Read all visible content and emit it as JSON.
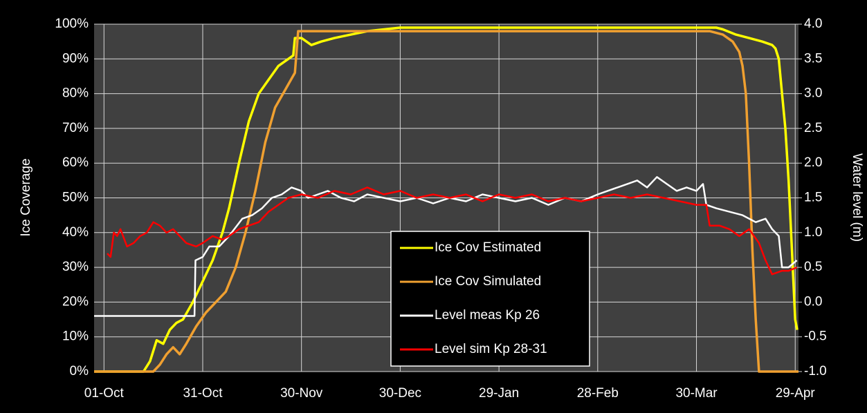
{
  "chart_data": {
    "type": "line",
    "xlim": [
      -3,
      211
    ],
    "xticks": [
      {
        "value": 0,
        "label": "01-Oct"
      },
      {
        "value": 30,
        "label": "31-Oct"
      },
      {
        "value": 60,
        "label": "30-Nov"
      },
      {
        "value": 90,
        "label": "30-Dec"
      },
      {
        "value": 120,
        "label": "29-Jan"
      },
      {
        "value": 150,
        "label": "28-Feb"
      },
      {
        "value": 180,
        "label": "30-Mar"
      },
      {
        "value": 210,
        "label": "29-Apr"
      }
    ],
    "ylabel": "Ice Coverage",
    "ylim": [
      0,
      100
    ],
    "yticks": [
      {
        "value": 0,
        "label": "0%"
      },
      {
        "value": 10,
        "label": "10%"
      },
      {
        "value": 20,
        "label": "20%"
      },
      {
        "value": 30,
        "label": "30%"
      },
      {
        "value": 40,
        "label": "40%"
      },
      {
        "value": 50,
        "label": "50%"
      },
      {
        "value": 60,
        "label": "60%"
      },
      {
        "value": 70,
        "label": "70%"
      },
      {
        "value": 80,
        "label": "80%"
      },
      {
        "value": 90,
        "label": "90%"
      },
      {
        "value": 100,
        "label": "100%"
      }
    ],
    "y2label": "Water level (m)",
    "y2lim": [
      -1,
      4
    ],
    "y2ticks": [
      {
        "value": -1,
        "label": "-1.0"
      },
      -0.5,
      {
        "value": 0,
        "label": "0.0"
      },
      0.5,
      {
        "value": 1,
        "label": "1.0"
      },
      1.5,
      {
        "value": 2,
        "label": "2.0"
      },
      2.5,
      {
        "value": 3,
        "label": "3.0"
      },
      3.5,
      {
        "value": 4,
        "label": "4.0"
      }
    ],
    "grid": true,
    "series": [
      {
        "name": "Ice Cov Estimated",
        "color": "#ffff00",
        "x": [
          -3,
          12,
          14,
          16,
          18,
          20,
          22,
          24,
          27,
          30,
          33,
          36,
          38,
          41,
          44,
          47,
          50,
          53,
          56,
          57.5,
          58,
          60,
          63,
          66,
          70,
          75,
          80,
          90,
          120,
          150,
          180,
          186,
          188,
          192,
          196,
          200,
          203,
          204,
          205,
          206,
          207,
          208,
          209,
          210,
          210.6
        ],
        "values": [
          0,
          0,
          3,
          9,
          8,
          12,
          14,
          15,
          20,
          26,
          32,
          40,
          47,
          60,
          72,
          80,
          84,
          88,
          90,
          91,
          96,
          96,
          94,
          95,
          96,
          97,
          98,
          99,
          99,
          99,
          99,
          99,
          98.5,
          97,
          96,
          95,
          94,
          93,
          90,
          80,
          70,
          55,
          35,
          15,
          12
        ]
      },
      {
        "name": "Ice Cov Simulated",
        "color": "#f0a030",
        "x": [
          -3,
          15,
          17,
          19,
          21,
          23,
          25,
          28,
          31,
          34,
          37,
          40,
          43,
          46,
          49,
          52,
          55,
          58,
          59,
          60,
          90,
          120,
          150,
          180,
          184,
          188,
          191,
          193,
          194,
          195,
          196,
          197,
          198,
          199,
          211
        ],
        "values": [
          0,
          0,
          2,
          5,
          7,
          5,
          8,
          13,
          17,
          20,
          23,
          30,
          40,
          52,
          66,
          76,
          81,
          86,
          98,
          98,
          98,
          98,
          98,
          98,
          98,
          97,
          95,
          92,
          88,
          80,
          60,
          35,
          15,
          0,
          0
        ]
      },
      {
        "name": "Level meas Kp 26",
        "color": "#ffffff",
        "axis": "y2",
        "x": [
          -3,
          27.5,
          27.8,
          30,
          32,
          35,
          38,
          42,
          45,
          48,
          51,
          54,
          57,
          60,
          62,
          65,
          68,
          72,
          76,
          80,
          85,
          90,
          95,
          100,
          105,
          110,
          115,
          120,
          125,
          130,
          135,
          140,
          145,
          150,
          153,
          156,
          159,
          162,
          165,
          168,
          171,
          174,
          177,
          180,
          182,
          183,
          186,
          190,
          194,
          198,
          201,
          203,
          205,
          206,
          208,
          210.5
        ],
        "values": [
          -0.2,
          -0.2,
          0.6,
          0.65,
          0.8,
          0.8,
          0.95,
          1.2,
          1.25,
          1.35,
          1.5,
          1.55,
          1.65,
          1.6,
          1.5,
          1.55,
          1.6,
          1.5,
          1.45,
          1.55,
          1.5,
          1.45,
          1.5,
          1.42,
          1.5,
          1.45,
          1.55,
          1.5,
          1.45,
          1.5,
          1.4,
          1.5,
          1.45,
          1.55,
          1.6,
          1.65,
          1.7,
          1.75,
          1.65,
          1.8,
          1.7,
          1.6,
          1.65,
          1.6,
          1.7,
          1.4,
          1.35,
          1.3,
          1.25,
          1.15,
          1.2,
          1.05,
          0.95,
          0.5,
          0.5,
          0.6
        ]
      },
      {
        "name": "Level sim Kp 28-31",
        "color": "#ff0000",
        "axis": "y2",
        "x": [
          1,
          2,
          3,
          4,
          5,
          7,
          9,
          11,
          13,
          15,
          17,
          19,
          21,
          23,
          25,
          28,
          30,
          33,
          36,
          38,
          41,
          44,
          47,
          50,
          53,
          56,
          60,
          65,
          70,
          75,
          80,
          85,
          90,
          95,
          100,
          105,
          110,
          115,
          120,
          125,
          130,
          135,
          140,
          145,
          150,
          155,
          160,
          165,
          170,
          175,
          180,
          183,
          184,
          187,
          190,
          193,
          196,
          199,
          201,
          203,
          206,
          208,
          210.5
        ],
        "values": [
          0.7,
          0.65,
          1.0,
          0.95,
          1.05,
          0.8,
          0.85,
          0.95,
          1.0,
          1.15,
          1.1,
          1.0,
          1.05,
          0.95,
          0.85,
          0.8,
          0.85,
          0.95,
          0.9,
          0.95,
          1.05,
          1.1,
          1.15,
          1.3,
          1.4,
          1.5,
          1.55,
          1.5,
          1.6,
          1.55,
          1.65,
          1.55,
          1.6,
          1.5,
          1.55,
          1.5,
          1.55,
          1.45,
          1.55,
          1.5,
          1.55,
          1.45,
          1.5,
          1.45,
          1.5,
          1.55,
          1.5,
          1.55,
          1.5,
          1.45,
          1.4,
          1.4,
          1.1,
          1.1,
          1.05,
          0.95,
          1.05,
          0.85,
          0.6,
          0.4,
          0.45,
          0.45,
          0.5
        ]
      }
    ]
  }
}
